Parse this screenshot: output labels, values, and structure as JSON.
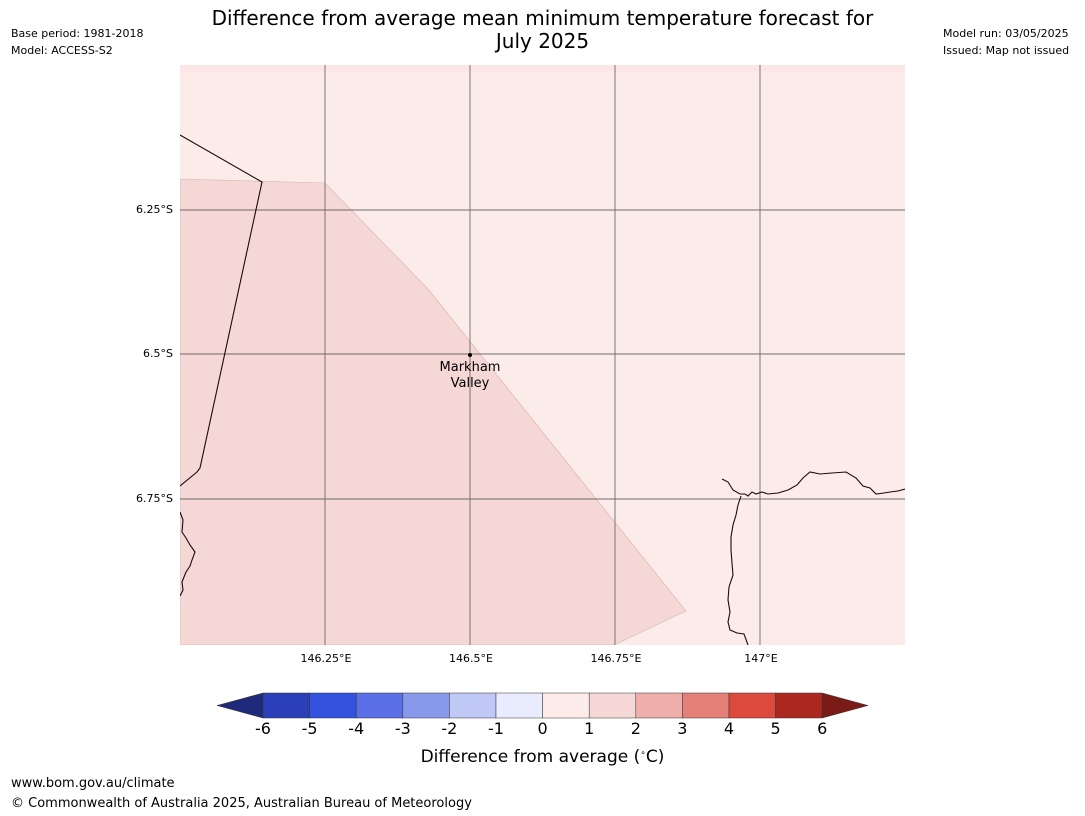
{
  "header": {
    "title_line1": "Difference from average mean minimum temperature forecast for",
    "title_line2": "July 2025",
    "base_period": "Base period: 1981-2018",
    "model": "Model: ACCESS-S2",
    "model_run": "Model run: 03/05/2025",
    "issued": "Issued: Map not issued"
  },
  "map": {
    "latitude_labels": [
      "6.25°S",
      "6.5°S",
      "6.75°S"
    ],
    "longitude_labels": [
      "146.25°E",
      "146.5°E",
      "146.75°E",
      "147°E"
    ],
    "place": {
      "name_line1": "Markham",
      "name_line2": "Valley"
    },
    "region_colors": {
      "anomaly_0_1": "#fbebe9",
      "anomaly_1_2": "#f5d7d5"
    },
    "coastline_color": "#1a0a0a",
    "gridline_color": "#555555"
  },
  "colorbar": {
    "ticks": [
      "-6",
      "-5",
      "-4",
      "-3",
      "-2",
      "-1",
      "0",
      "1",
      "2",
      "3",
      "4",
      "5",
      "6"
    ],
    "colors": [
      "#1f2b7a",
      "#2a3fb8",
      "#3352de",
      "#5b70e6",
      "#8899ec",
      "#c0c8f5",
      "#e8ecfc",
      "#fbebe9",
      "#f5d7d5",
      "#eeaea9",
      "#e58078",
      "#dc4a3e",
      "#ab2820",
      "#7a1b17"
    ],
    "label": "Difference from average (",
    "unit": "C)"
  },
  "footer": {
    "url": "www.bom.gov.au/climate",
    "copyright": "© Commonwealth of Australia 2025, Australian Bureau of Meteorology"
  }
}
